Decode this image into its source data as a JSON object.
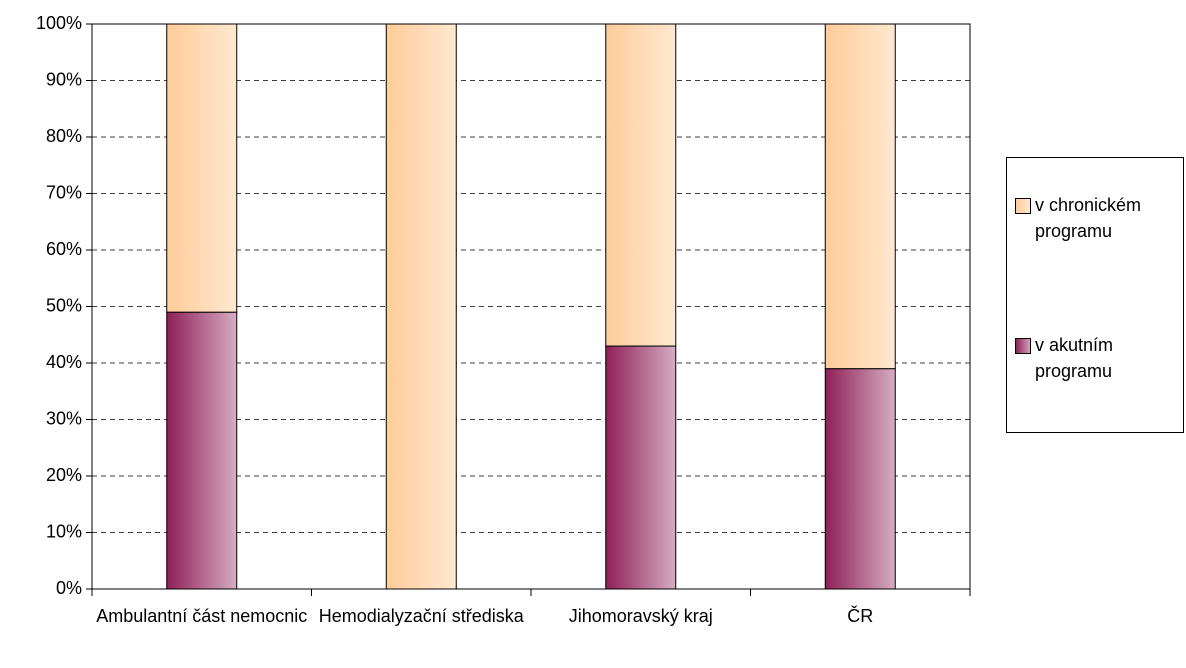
{
  "chart_data": {
    "type": "stacked_bar",
    "categories": [
      "Ambulantní část nemocnic",
      "Hemodialyzační střediska",
      "Jihomoravský kraj",
      "ČR"
    ],
    "series": [
      {
        "name": "v akutním programu",
        "color": "#993366",
        "values": [
          49,
          0,
          43,
          39
        ]
      },
      {
        "name": "v chronickém programu",
        "color": "#ffcc99",
        "values": [
          51,
          100,
          57,
          61
        ]
      }
    ],
    "ylim": [
      0,
      100
    ],
    "yticks": [
      {
        "value": 0,
        "label": "0%"
      },
      {
        "value": 10,
        "label": "10%"
      },
      {
        "value": 20,
        "label": "20%"
      },
      {
        "value": 30,
        "label": "30%"
      },
      {
        "value": 40,
        "label": "40%"
      },
      {
        "value": 50,
        "label": "50%"
      },
      {
        "value": 60,
        "label": "60%"
      },
      {
        "value": 70,
        "label": "70%"
      },
      {
        "value": 80,
        "label": "80%"
      },
      {
        "value": 90,
        "label": "90%"
      },
      {
        "value": 100,
        "label": "100%"
      }
    ],
    "grid": true,
    "legend": "right"
  }
}
